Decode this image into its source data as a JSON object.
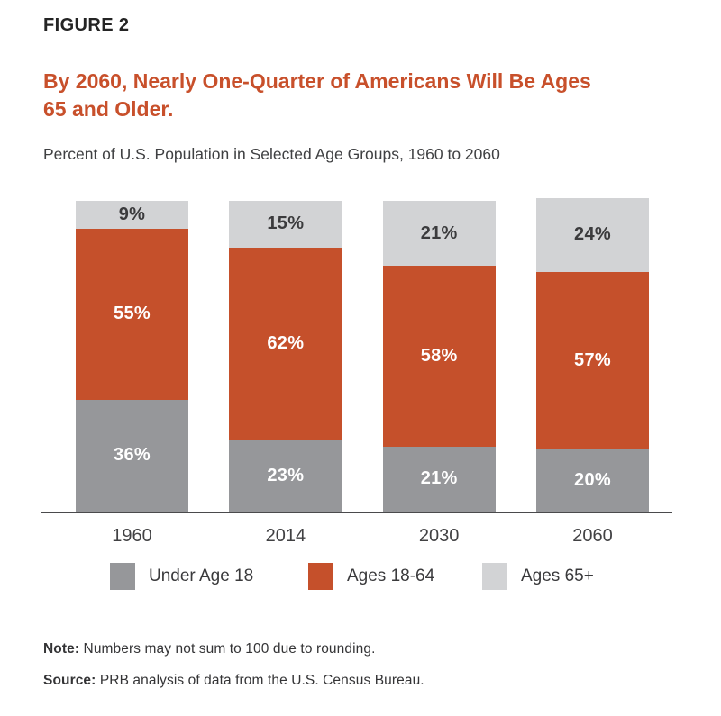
{
  "header": {
    "figure_label": "FIGURE 2",
    "title_line1": "By 2060, Nearly One-Quarter of Americans Will Be Ages",
    "title_line2": "65 and Older.",
    "title_color": "#c8502b"
  },
  "chart_data": {
    "type": "bar",
    "stacked": true,
    "title": "Percent of U.S. Population in Selected Age Groups, 1960 to 2060",
    "categories": [
      "1960",
      "2014",
      "2030",
      "2060"
    ],
    "series": [
      {
        "name": "Under Age 18",
        "color": "#96979A",
        "label_color": "#FFFFFF",
        "values": [
          36,
          23,
          21,
          20
        ]
      },
      {
        "name": "Ages 18-64",
        "color": "#C5502B",
        "label_color": "#FFFFFF",
        "values": [
          55,
          62,
          58,
          57
        ]
      },
      {
        "name": "Ages 65+",
        "color": "#D2D3D5",
        "label_color": "#3B3B3D",
        "values": [
          9,
          15,
          21,
          24
        ]
      }
    ],
    "value_suffix": "%",
    "ylim": [
      0,
      100
    ],
    "grid": false,
    "y_axis_shown": false,
    "legend_position": "bottom",
    "axis_line_color": "#4a4a4c"
  },
  "footer": {
    "note_label": "Note:",
    "note_text": "Numbers may not sum to 100 due to rounding.",
    "source_label": "Source:",
    "source_text": "PRB analysis of data from the U.S. Census Bureau."
  }
}
